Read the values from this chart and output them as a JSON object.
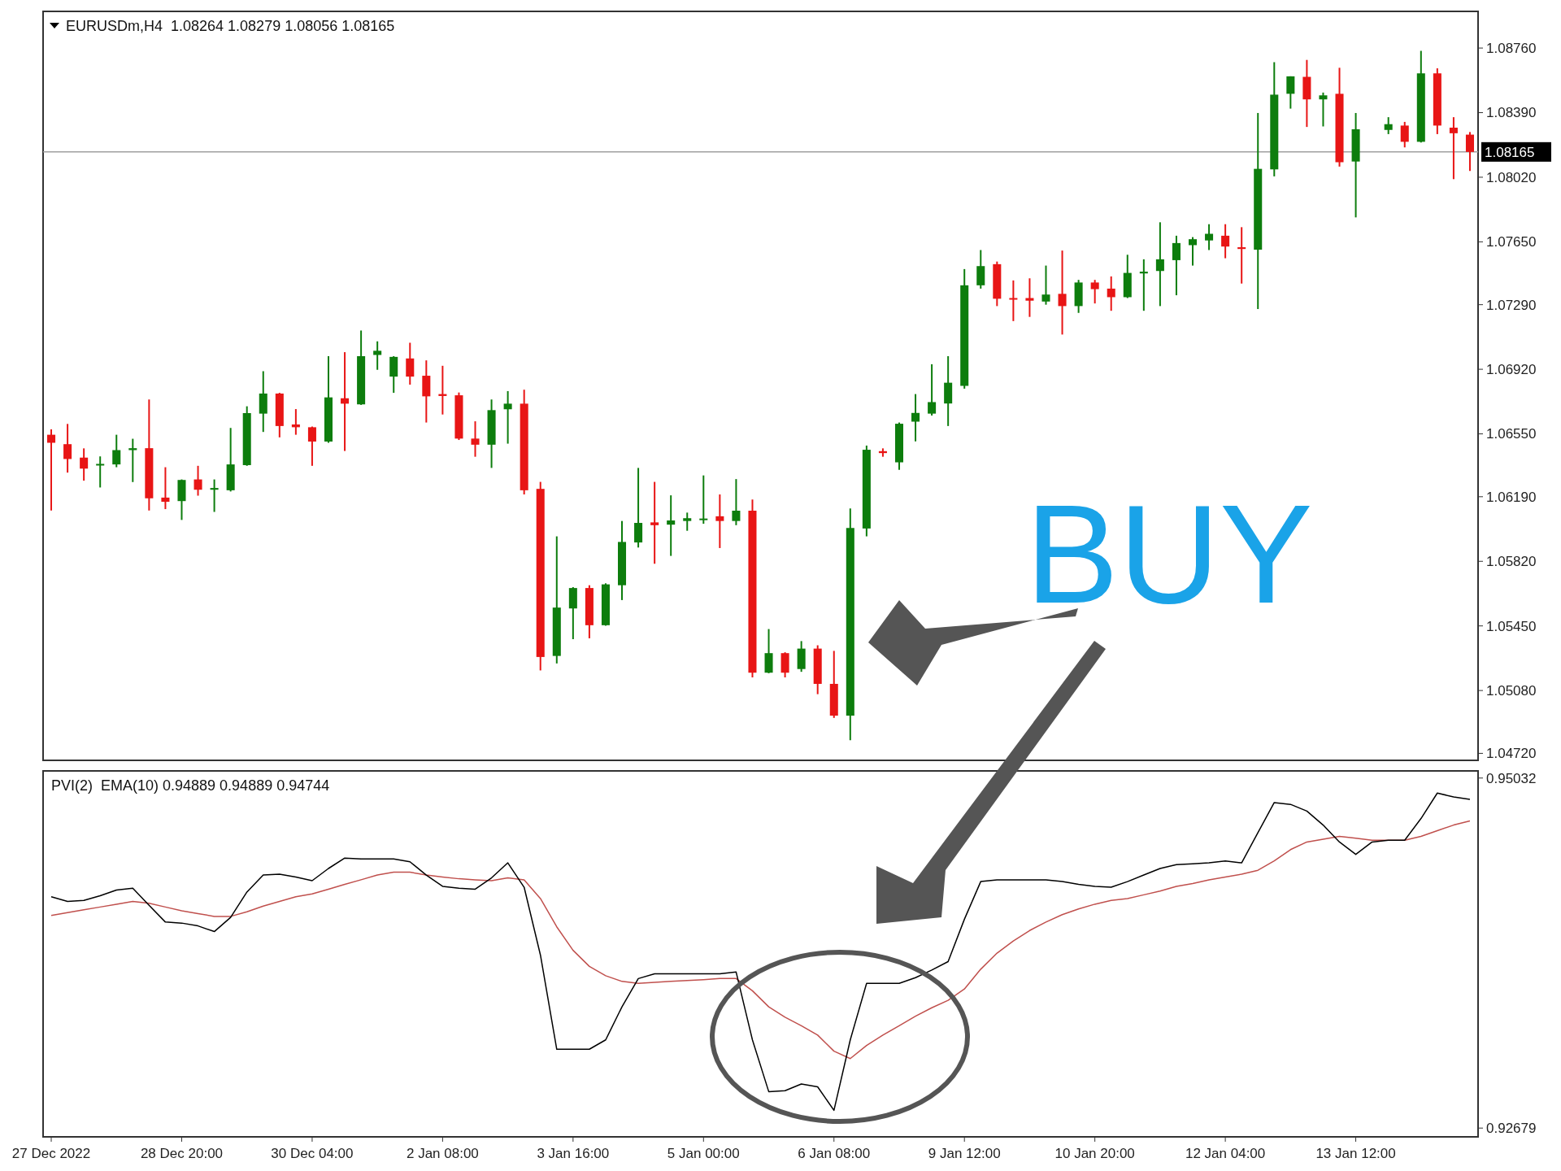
{
  "chart_data": [
    {
      "type": "candlestick",
      "title": "EURUSDm,H4  1.08264 1.08279 1.08056 1.08165",
      "annotations": [
        "BUY"
      ],
      "tick_labels": "y",
      "categories": [
        null,
        null,
        null,
        null,
        null,
        null,
        null,
        null,
        null,
        null,
        null,
        null,
        null,
        null,
        null,
        null,
        null,
        null,
        null,
        null,
        null,
        null,
        null,
        null,
        null,
        null,
        null,
        null,
        null,
        null,
        null,
        null,
        null,
        null,
        null,
        null,
        null,
        null,
        null,
        null,
        null,
        null,
        null,
        null,
        null,
        null,
        null,
        null,
        null,
        null,
        null,
        null,
        null,
        null,
        null,
        null,
        null,
        null,
        null,
        null,
        null,
        null,
        null,
        null,
        null,
        null,
        null,
        null,
        null,
        null,
        null,
        null,
        null,
        null,
        null,
        null,
        null,
        null,
        null,
        null,
        null,
        null,
        null,
        null,
        null,
        null,
        null,
        null
      ],
      "ohlc": [
        [
          1.06545,
          1.06576,
          1.06111,
          1.06499
        ],
        [
          1.06491,
          1.06607,
          1.06328,
          1.06406
        ],
        [
          1.06414,
          1.06467,
          1.06282,
          1.06351
        ],
        [
          1.0637,
          1.06421,
          1.06243,
          1.06378
        ],
        [
          1.06375,
          1.06545,
          1.06359,
          1.06457
        ],
        [
          1.06457,
          1.06522,
          1.06274,
          1.06468
        ],
        [
          1.06468,
          1.06747,
          1.06111,
          1.06181
        ],
        [
          1.06185,
          1.06359,
          1.06119,
          1.06161
        ],
        [
          1.06165,
          1.06289,
          1.06057,
          1.06286
        ],
        [
          1.06289,
          1.06367,
          1.06196,
          1.0623
        ],
        [
          1.0623,
          1.06289,
          1.06103,
          1.0624
        ],
        [
          1.06227,
          1.06584,
          1.0622,
          1.06375
        ],
        [
          1.06371,
          1.06708,
          1.06367,
          1.06669
        ],
        [
          1.06666,
          1.06909,
          1.06561,
          1.06781
        ],
        [
          1.06781,
          1.06785,
          1.0653,
          1.06595
        ],
        [
          1.06604,
          1.06692,
          1.06545,
          1.06588
        ],
        [
          1.06588,
          1.06592,
          1.06367,
          1.06506
        ],
        [
          1.06506,
          1.06995,
          1.06499,
          1.06759
        ],
        [
          1.06754,
          1.07018,
          1.06452,
          1.06723
        ],
        [
          1.06719,
          1.07142,
          1.06716,
          1.06995
        ],
        [
          1.07002,
          1.0708,
          1.06917,
          1.07026
        ],
        [
          1.06878,
          1.06995,
          1.06785,
          1.06991
        ],
        [
          1.06982,
          1.07072,
          1.06832,
          1.06878
        ],
        [
          1.06883,
          1.06971,
          1.06615,
          1.06765
        ],
        [
          1.06778,
          1.0694,
          1.06661,
          1.06767
        ],
        [
          1.06771,
          1.06787,
          1.06515,
          1.06523
        ],
        [
          1.06523,
          1.06622,
          1.06419,
          1.06488
        ],
        [
          1.06488,
          1.06747,
          1.06355,
          1.06686
        ],
        [
          1.06691,
          1.06795,
          1.06494,
          1.06723
        ],
        [
          1.06723,
          1.06803,
          1.06203,
          1.06227
        ],
        [
          1.06235,
          1.06275,
          1.05195,
          1.05272
        ],
        [
          1.05278,
          1.05963,
          1.05235,
          1.05555
        ],
        [
          1.0555,
          1.05672,
          1.05374,
          1.05667
        ],
        [
          1.05667,
          1.05683,
          1.05379,
          1.05454
        ],
        [
          1.05454,
          1.05694,
          1.05451,
          1.05688
        ],
        [
          1.05683,
          1.06051,
          1.05598,
          1.05931
        ],
        [
          1.05928,
          1.06355,
          1.05899,
          1.0604
        ],
        [
          1.06043,
          1.06275,
          1.05806,
          1.06027
        ],
        [
          1.0603,
          1.06198,
          1.05851,
          1.06054
        ],
        [
          1.06051,
          1.06099,
          1.05995,
          1.06067
        ],
        [
          1.06059,
          1.06312,
          1.06035,
          1.06065
        ],
        [
          1.06078,
          1.06203,
          1.05896,
          1.06051
        ],
        [
          1.06051,
          1.06291,
          1.06027,
          1.0611
        ],
        [
          1.0611,
          1.06174,
          1.05155,
          1.05182
        ],
        [
          1.05182,
          1.05432,
          1.05179,
          1.05294
        ],
        [
          1.05294,
          1.05299,
          1.05155,
          1.05182
        ],
        [
          1.05203,
          1.05363,
          1.05187,
          1.0532
        ],
        [
          1.0532,
          1.05339,
          1.05059,
          1.05118
        ],
        [
          1.05118,
          1.05307,
          1.04923,
          1.04936
        ],
        [
          1.04936,
          1.06123,
          1.04795,
          1.06011
        ],
        [
          1.06008,
          1.06483,
          1.05963,
          1.06459
        ],
        [
          1.06451,
          1.06467,
          1.06419,
          1.0644
        ],
        [
          1.06387,
          1.06615,
          1.06344,
          1.06608
        ],
        [
          1.0662,
          1.06778,
          1.06507,
          1.0667
        ],
        [
          1.06666,
          1.06949,
          1.06655,
          1.06732
        ],
        [
          1.06724,
          1.06995,
          1.06595,
          1.06843
        ],
        [
          1.06825,
          1.07494,
          1.06809,
          1.07401
        ],
        [
          1.07401,
          1.07603,
          1.07382,
          1.07511
        ],
        [
          1.07522,
          1.07537,
          1.07282,
          1.07324
        ],
        [
          1.07328,
          1.07429,
          1.07196,
          1.0732
        ],
        [
          1.07328,
          1.07441,
          1.0722,
          1.07313
        ],
        [
          1.07308,
          1.07514,
          1.0729,
          1.07348
        ],
        [
          1.07352,
          1.076,
          1.07119,
          1.07282
        ],
        [
          1.07282,
          1.07432,
          1.07243,
          1.07417
        ],
        [
          1.07417,
          1.07432,
          1.07297,
          1.07379
        ],
        [
          1.07382,
          1.07452,
          1.07255,
          1.07333
        ],
        [
          1.07333,
          1.07576,
          1.07328,
          1.07472
        ],
        [
          1.07469,
          1.0755,
          1.07255,
          1.07479
        ],
        [
          1.07483,
          1.07762,
          1.07282,
          1.0755
        ],
        [
          1.07545,
          1.07685,
          1.07344,
          1.07643
        ],
        [
          1.07631,
          1.07677,
          1.07514,
          1.07665
        ],
        [
          1.07658,
          1.07751,
          1.07603,
          1.07696
        ],
        [
          1.07685,
          1.07751,
          1.07556,
          1.07623
        ],
        [
          1.07619,
          1.07734,
          1.07411,
          1.07609
        ],
        [
          1.07605,
          1.08388,
          1.07265,
          1.08068
        ],
        [
          1.08065,
          1.08679,
          1.08025,
          1.08493
        ],
        [
          1.08498,
          1.08598,
          1.08413,
          1.08598
        ],
        [
          1.08595,
          1.08692,
          1.08308,
          1.08466
        ],
        [
          1.08466,
          1.08505,
          1.08311,
          1.08489
        ],
        [
          1.08498,
          1.08647,
          1.08081,
          1.08106
        ],
        [
          1.0811,
          1.08388,
          1.0779,
          1.08295
        ],
        null,
        [
          1.08291,
          1.08364,
          1.08267,
          1.08324
        ],
        [
          1.08316,
          1.08337,
          1.08191,
          1.08223
        ],
        [
          1.08223,
          1.08744,
          1.08219,
          1.08615
        ],
        [
          1.08615,
          1.08644,
          1.08267,
          1.08316
        ],
        [
          1.08304,
          1.08364,
          1.08009,
          1.08272
        ],
        [
          1.08264,
          1.08279,
          1.08056,
          1.08165
        ]
      ],
      "ylim": [
        1.0468,
        1.0897
      ],
      "yticks": [
        {
          "value": 1.0876,
          "label": "1.08760"
        },
        {
          "value": 1.0839,
          "label": "1.08390"
        },
        {
          "value": 1.0802,
          "label": "1.08020"
        },
        {
          "value": 1.0765,
          "label": "1.07650"
        },
        {
          "value": 1.0729,
          "label": "1.07290"
        },
        {
          "value": 1.0692,
          "label": "1.06920"
        },
        {
          "value": 1.0655,
          "label": "1.06550"
        },
        {
          "value": 1.0619,
          "label": "1.06190"
        },
        {
          "value": 1.0582,
          "label": "1.05820"
        },
        {
          "value": 1.0545,
          "label": "1.05450"
        },
        {
          "value": 1.0508,
          "label": "1.05080"
        },
        {
          "value": 1.0472,
          "label": "1.04720"
        }
      ],
      "ref_lines": [
        {
          "axis": "y",
          "value": 1.08165,
          "label": "1.08165",
          "color": "#a0a0a0"
        }
      ]
    },
    {
      "type": "line",
      "title": "PVI(2)  EMA(10) 0.94889 0.94889 0.94744",
      "categories": [
        "27 Dec 2022",
        null,
        null,
        null,
        null,
        null,
        null,
        null,
        "28 Dec 20:00",
        null,
        null,
        null,
        null,
        null,
        null,
        null,
        "30 Dec 04:00",
        null,
        null,
        null,
        null,
        null,
        null,
        null,
        "2 Jan 08:00",
        null,
        null,
        null,
        null,
        null,
        null,
        null,
        "3 Jan 16:00",
        null,
        null,
        null,
        null,
        null,
        null,
        null,
        "5 Jan 00:00",
        null,
        null,
        null,
        null,
        null,
        null,
        null,
        "6 Jan 08:00",
        null,
        null,
        null,
        null,
        null,
        null,
        null,
        "9 Jan 12:00",
        null,
        null,
        null,
        null,
        null,
        null,
        null,
        "10 Jan 20:00",
        null,
        null,
        null,
        null,
        null,
        null,
        null,
        "12 Jan 04:00",
        null,
        null,
        null,
        null,
        null,
        null,
        null,
        "13 Jan 12:00",
        null,
        null,
        null,
        null,
        null,
        null,
        null
      ],
      "series": [
        {
          "color": "#000000",
          "values": [
            0.94234,
            0.94203,
            0.94209,
            0.94241,
            0.94279,
            0.94291,
            0.94177,
            0.94064,
            0.94057,
            0.94038,
            0.94,
            0.94095,
            0.94266,
            0.9438,
            0.94386,
            0.94367,
            0.94342,
            0.94424,
            0.94494,
            0.94488,
            0.94488,
            0.94488,
            0.94469,
            0.9438,
            0.94304,
            0.94291,
            0.94285,
            0.94361,
            0.94462,
            0.94298,
            0.93842,
            0.93209,
            0.93209,
            0.93209,
            0.93272,
            0.93494,
            0.93684,
            0.93716,
            0.93716,
            0.93716,
            0.93716,
            0.93716,
            0.93728,
            0.93272,
            0.92924,
            0.9293,
            0.92975,
            0.92956,
            0.92798,
            0.93272,
            0.93652,
            0.93652,
            0.93652,
            0.9369,
            0.93741,
            0.93798,
            0.94083,
            0.94336,
            0.94348,
            0.94348,
            0.94348,
            0.94348,
            0.94336,
            0.94317,
            0.94304,
            0.94298,
            0.94336,
            0.9438,
            0.94424,
            0.9445,
            0.94456,
            0.94462,
            0.94475,
            0.94462,
            0.94665,
            0.94867,
            0.94855,
            0.9481,
            0.94716,
            0.94602,
            0.94519,
            0.94602,
            0.94614,
            0.94614,
            0.9476,
            0.94931,
            0.94905,
            0.94889
          ]
        },
        {
          "color": "#c0504d",
          "values": [
            0.94108,
            0.94127,
            0.94146,
            0.94165,
            0.94184,
            0.94203,
            0.9419,
            0.94165,
            0.9414,
            0.94121,
            0.94102,
            0.94102,
            0.94133,
            0.94171,
            0.94203,
            0.94234,
            0.94253,
            0.94285,
            0.94317,
            0.94348,
            0.9438,
            0.94399,
            0.94399,
            0.9438,
            0.94367,
            0.94355,
            0.94348,
            0.94342,
            0.94361,
            0.94348,
            0.94222,
            0.94032,
            0.93874,
            0.93766,
            0.93703,
            0.93665,
            0.93652,
            0.93658,
            0.93665,
            0.93671,
            0.93677,
            0.93684,
            0.93684,
            0.93602,
            0.93494,
            0.93424,
            0.93367,
            0.93304,
            0.93196,
            0.93146,
            0.93234,
            0.93304,
            0.93367,
            0.93431,
            0.93488,
            0.93538,
            0.93614,
            0.93747,
            0.93855,
            0.93937,
            0.94007,
            0.94064,
            0.94114,
            0.94152,
            0.94184,
            0.94209,
            0.94222,
            0.94247,
            0.94272,
            0.94304,
            0.94323,
            0.94348,
            0.94367,
            0.94386,
            0.94412,
            0.94475,
            0.94551,
            0.94602,
            0.94621,
            0.9464,
            0.94627,
            0.94614,
            0.94614,
            0.94614,
            0.9464,
            0.94678,
            0.94716,
            0.94744
          ]
        }
      ],
      "ylim": [
        0.9262,
        0.9508
      ],
      "yticks": [
        {
          "value": 0.95032,
          "label": "0.95032"
        },
        {
          "value": 0.92679,
          "label": "0.92679"
        }
      ]
    }
  ]
}
